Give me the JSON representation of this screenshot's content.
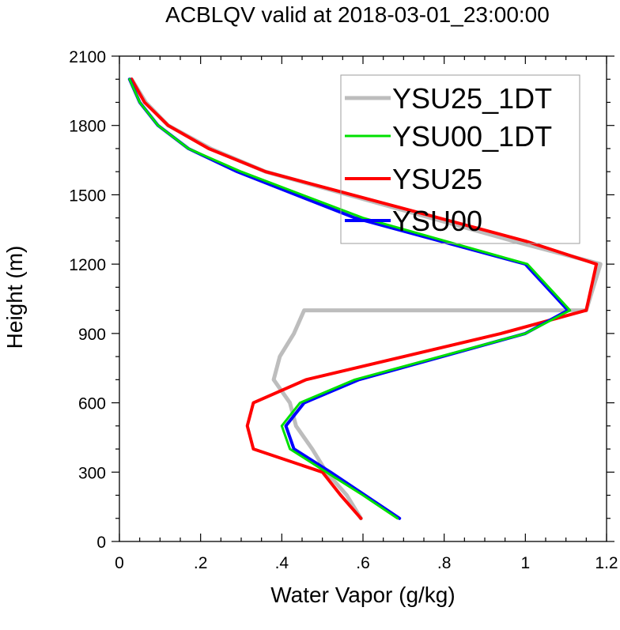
{
  "chart_data": {
    "type": "line",
    "title": "ACBLQV valid at 2018-03-01_23:00:00",
    "xlabel": "Water Vapor (g/kg)",
    "ylabel": "Height (m)",
    "xlim": [
      0,
      1.2
    ],
    "ylim": [
      0,
      2100
    ],
    "xticks": [
      {
        "value": 0,
        "label": "0"
      },
      {
        "value": 0.2,
        "label": ".2"
      },
      {
        "value": 0.4,
        "label": ".4"
      },
      {
        "value": 0.6,
        "label": ".6"
      },
      {
        "value": 0.8,
        "label": ".8"
      },
      {
        "value": 1.0,
        "label": "1"
      },
      {
        "value": 1.2,
        "label": "1.2"
      }
    ],
    "yticks": [
      {
        "value": 0,
        "label": "0"
      },
      {
        "value": 300,
        "label": "300"
      },
      {
        "value": 600,
        "label": "600"
      },
      {
        "value": 900,
        "label": "900"
      },
      {
        "value": 1200,
        "label": "1200"
      },
      {
        "value": 1500,
        "label": "1500"
      },
      {
        "value": 1800,
        "label": "1800"
      },
      {
        "value": 2100,
        "label": "2100"
      }
    ],
    "grid": false,
    "legend_position": "top-right",
    "series": [
      {
        "name": "YSU25_1DT",
        "color": "#bdbdbd",
        "points": [
          [
            0.595,
            100
          ],
          [
            0.56,
            200
          ],
          [
            0.51,
            300
          ],
          [
            0.475,
            400
          ],
          [
            0.435,
            500
          ],
          [
            0.42,
            600
          ],
          [
            0.38,
            700
          ],
          [
            0.395,
            800
          ],
          [
            0.43,
            900
          ],
          [
            0.455,
            1000
          ],
          [
            1.15,
            1000
          ],
          [
            1.185,
            1200
          ],
          [
            0.97,
            1300
          ],
          [
            0.36,
            1600
          ],
          [
            0.225,
            1700
          ],
          [
            0.12,
            1800
          ],
          [
            0.065,
            1900
          ],
          [
            0.03,
            2000
          ]
        ]
      },
      {
        "name": "YSU00_1DT",
        "color": "#00e000",
        "points": [
          [
            0.685,
            100
          ],
          [
            0.6,
            200
          ],
          [
            0.51,
            300
          ],
          [
            0.42,
            400
          ],
          [
            0.4,
            500
          ],
          [
            0.445,
            600
          ],
          [
            0.58,
            700
          ],
          [
            1.0,
            900
          ],
          [
            1.11,
            1000
          ],
          [
            1.005,
            1200
          ],
          [
            0.6,
            1400
          ],
          [
            0.3,
            1600
          ],
          [
            0.17,
            1700
          ],
          [
            0.095,
            1800
          ],
          [
            0.05,
            1900
          ],
          [
            0.025,
            2000
          ]
        ]
      },
      {
        "name": "YSU25",
        "color": "#ff0000",
        "points": [
          [
            0.595,
            100
          ],
          [
            0.545,
            200
          ],
          [
            0.5,
            300
          ],
          [
            0.33,
            400
          ],
          [
            0.315,
            500
          ],
          [
            0.33,
            600
          ],
          [
            0.46,
            700
          ],
          [
            0.94,
            900
          ],
          [
            1.15,
            1000
          ],
          [
            1.175,
            1200
          ],
          [
            1.0,
            1300
          ],
          [
            0.36,
            1600
          ],
          [
            0.22,
            1700
          ],
          [
            0.12,
            1800
          ],
          [
            0.062,
            1900
          ],
          [
            0.03,
            2000
          ]
        ]
      },
      {
        "name": "YSU00",
        "color": "#0000ff",
        "points": [
          [
            0.69,
            100
          ],
          [
            0.605,
            200
          ],
          [
            0.52,
            300
          ],
          [
            0.43,
            400
          ],
          [
            0.41,
            500
          ],
          [
            0.455,
            600
          ],
          [
            0.59,
            700
          ],
          [
            1.0,
            900
          ],
          [
            1.105,
            1000
          ],
          [
            1.0,
            1200
          ],
          [
            0.58,
            1400
          ],
          [
            0.29,
            1600
          ],
          [
            0.17,
            1700
          ],
          [
            0.095,
            1800
          ],
          [
            0.05,
            1900
          ],
          [
            0.025,
            2000
          ]
        ]
      }
    ]
  }
}
